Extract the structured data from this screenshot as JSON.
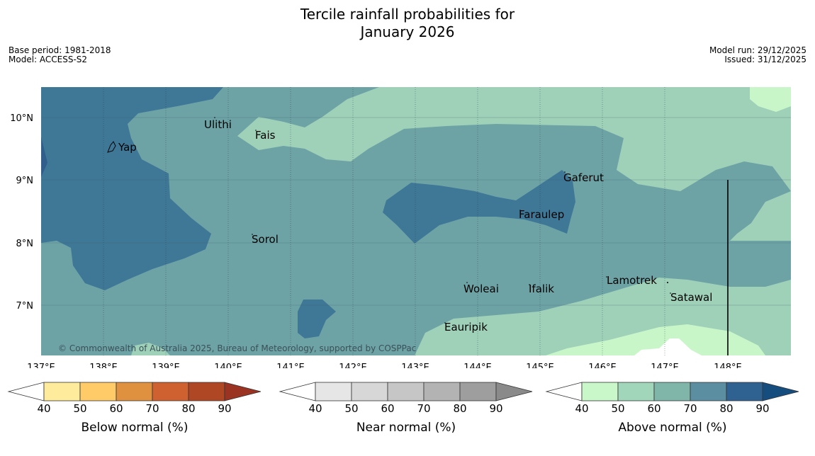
{
  "title_line1": "Tercile rainfall probabilities for",
  "title_line2": "January 2026",
  "meta_left": {
    "base_period": "Base period: 1981-2018",
    "model": "Model: ACCESS-S2"
  },
  "meta_right": {
    "model_run": "Model run: 29/12/2025",
    "issued": "Issued: 31/12/2025"
  },
  "map": {
    "lon_labels": [
      "137°E",
      "138°E",
      "139°E",
      "140°E",
      "141°E",
      "142°E",
      "143°E",
      "144°E",
      "145°E",
      "146°E",
      "147°E",
      "148°E"
    ],
    "lat_labels": [
      "10°N",
      "9°N",
      "8°N",
      "7°N"
    ],
    "places": [
      "Yap",
      "Ulithi",
      "Fais",
      "Gaferut",
      "Faraulep",
      "Sorol",
      "Lamotrek",
      "Woleai",
      "Ifalik",
      "Satawal",
      "Eauripik"
    ],
    "copyright": "© Commonwealth of Australia 2025, Bureau of Meteorology, supported by COSPPac",
    "colors": {
      "above_50": "#9fd1b9",
      "above_60": "#6ea3a6",
      "above_70": "#3f7897",
      "light_green": "#c9f6c9",
      "white": "#ffffff"
    }
  },
  "legends": [
    {
      "label": "Below normal (%)",
      "ticks": [
        "40",
        "50",
        "60",
        "70",
        "80",
        "90"
      ],
      "colors": [
        "#ffffff",
        "#ffeb9c",
        "#ffcb68",
        "#e0913f",
        "#cf6131",
        "#b04724",
        "#9b3322"
      ]
    },
    {
      "label": "Near normal (%)",
      "ticks": [
        "40",
        "50",
        "60",
        "70",
        "80",
        "90"
      ],
      "colors": [
        "#ffffff",
        "#e6e6e6",
        "#d7d7d7",
        "#c6c6c6",
        "#b3b3b3",
        "#9e9e9e",
        "#8a8a8a"
      ]
    },
    {
      "label": "Above normal (%)",
      "ticks": [
        "40",
        "50",
        "60",
        "70",
        "80",
        "90"
      ],
      "colors": [
        "#ffffff",
        "#c9f7c9",
        "#a1d6bb",
        "#80b5aa",
        "#5a8ea0",
        "#2f6290",
        "#164d7f"
      ]
    }
  ]
}
